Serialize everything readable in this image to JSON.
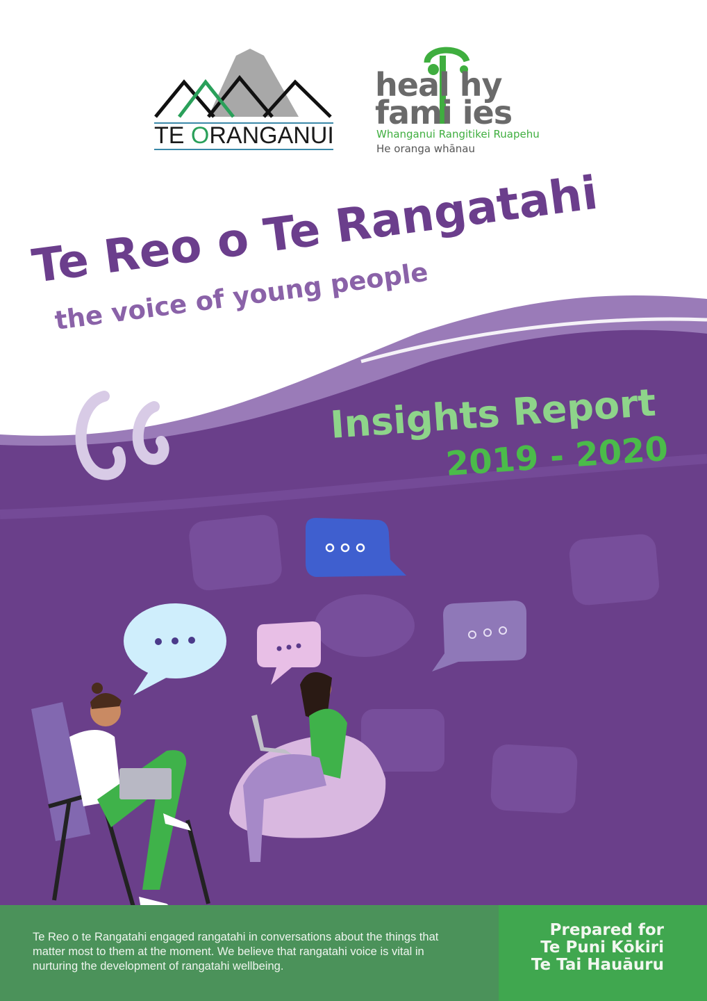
{
  "logos": {
    "te_oranganui": {
      "prefix": "TE ",
      "o": "O",
      "rest": "RANGANUI"
    },
    "healthy_families": {
      "line1": "heal hy",
      "line2": "fami ies",
      "region": "Whanganui Rangitikei Ruapehu",
      "tagline": "He oranga whānau"
    }
  },
  "cover": {
    "title": "Te Reo o Te Rangatahi",
    "subtitle": "the voice of young people",
    "report_title": "Insights Report",
    "years": "2019 - 2020"
  },
  "footer": {
    "blurb": "Te Reo o te Rangatahi engaged rangatahi in conversations about the things that matter most to them at the moment. We believe that rangatahi voice is vital in nurturing the development of rangatahi wellbeing.",
    "prepared_lines": [
      "Prepared for",
      "Te Puni Kōkiri",
      "Te Tai Hauāuru"
    ]
  },
  "colors": {
    "purple": "#6a3f8a",
    "title_purple": "#6b3e8c",
    "green_footer": "#4b925a",
    "green_box": "#40a74f",
    "insights_green": "#8ed48a"
  }
}
